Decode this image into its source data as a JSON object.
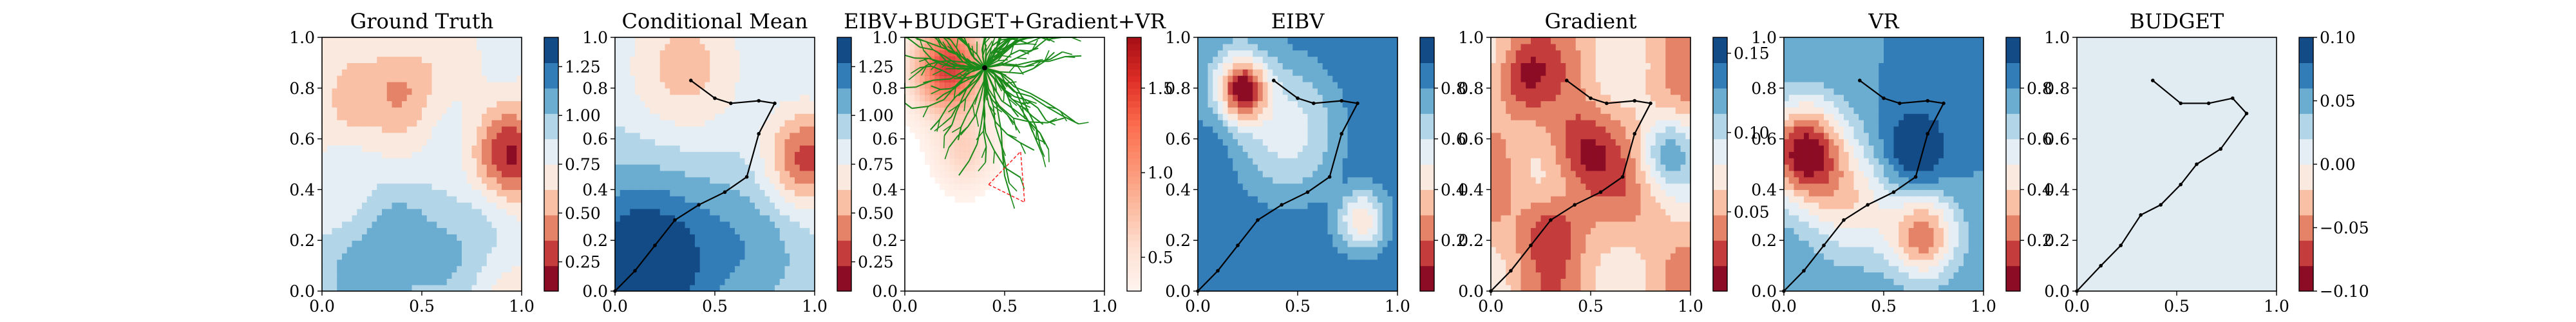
{
  "chart_data": [
    {
      "type": "heatmap",
      "title": "Ground Truth",
      "xlabel": "",
      "ylabel": "",
      "xlim": [
        0,
        1
      ],
      "ylim": [
        0,
        1
      ],
      "x_ticks": [
        "0.0",
        "0.5",
        "1.0"
      ],
      "y_ticks": [
        "0.0",
        "0.2",
        "0.4",
        "0.6",
        "0.8",
        "1.0"
      ],
      "colormap": "RdBu",
      "colorbar_ticks": [
        "0.25",
        "0.50",
        "0.75",
        "1.00",
        "1.25"
      ],
      "colorbar_range": [
        0.1,
        1.4
      ],
      "path": []
    },
    {
      "type": "heatmap",
      "title": "Conditional Mean",
      "xlabel": "",
      "ylabel": "",
      "xlim": [
        0,
        1
      ],
      "ylim": [
        0,
        1
      ],
      "x_ticks": [
        "0.0",
        "0.5",
        "1.0"
      ],
      "y_ticks": [
        "0.0",
        "0.2",
        "0.4",
        "0.6",
        "0.8",
        "1.0"
      ],
      "colormap": "RdBu",
      "colorbar_ticks": [
        "0.25",
        "0.50",
        "0.75",
        "1.00",
        "1.25"
      ],
      "colorbar_range": [
        0.1,
        1.4
      ],
      "path": [
        [
          0.0,
          0.0
        ],
        [
          0.1,
          0.08
        ],
        [
          0.2,
          0.18
        ],
        [
          0.3,
          0.28
        ],
        [
          0.42,
          0.34
        ],
        [
          0.55,
          0.39
        ],
        [
          0.66,
          0.45
        ],
        [
          0.72,
          0.62
        ],
        [
          0.8,
          0.74
        ],
        [
          0.72,
          0.75
        ],
        [
          0.58,
          0.74
        ],
        [
          0.5,
          0.76
        ],
        [
          0.38,
          0.83
        ]
      ]
    },
    {
      "type": "scatter",
      "title": "EIBV+BUDGET+Gradient+VR",
      "xlabel": "",
      "ylabel": "",
      "xlim": [
        0,
        1
      ],
      "ylim": [
        0,
        1
      ],
      "x_ticks": [
        "0.0",
        "0.5",
        "1.0"
      ],
      "y_ticks": [
        "0.0",
        "0.2",
        "0.4",
        "0.6",
        "0.8",
        "1.0"
      ],
      "colormap": "Reds",
      "colorbar_ticks": [
        "0.5",
        "1.0",
        "1.5"
      ],
      "colorbar_range": [
        0.3,
        1.8
      ],
      "tree_root": [
        0.4,
        0.88
      ],
      "path": []
    },
    {
      "type": "heatmap",
      "title": "EIBV",
      "xlabel": "",
      "ylabel": "",
      "xlim": [
        0,
        1
      ],
      "ylim": [
        0,
        1
      ],
      "x_ticks": [
        "0.0",
        "0.5",
        "1.0"
      ],
      "y_ticks": [
        "0.0",
        "0.2",
        "0.4",
        "0.6",
        "0.8",
        "1.0"
      ],
      "colormap": "RdBu",
      "colorbar_ticks": [
        "0.2",
        "0.4",
        "0.6",
        "0.8"
      ],
      "colorbar_range": [
        0.0,
        1.0
      ],
      "path": [
        [
          0.0,
          0.0
        ],
        [
          0.1,
          0.08
        ],
        [
          0.2,
          0.18
        ],
        [
          0.3,
          0.28
        ],
        [
          0.42,
          0.34
        ],
        [
          0.55,
          0.39
        ],
        [
          0.66,
          0.45
        ],
        [
          0.72,
          0.62
        ],
        [
          0.8,
          0.74
        ],
        [
          0.72,
          0.75
        ],
        [
          0.58,
          0.74
        ],
        [
          0.5,
          0.76
        ],
        [
          0.38,
          0.83
        ]
      ]
    },
    {
      "type": "heatmap",
      "title": "Gradient",
      "xlabel": "",
      "ylabel": "",
      "xlim": [
        0,
        1
      ],
      "ylim": [
        0,
        1
      ],
      "x_ticks": [
        "0.0",
        "0.5",
        "1.0"
      ],
      "y_ticks": [
        "0.0",
        "0.2",
        "0.4",
        "0.6",
        "0.8",
        "1.0"
      ],
      "colormap": "RdBu",
      "colorbar_ticks": [
        "0.05",
        "0.10",
        "0.15"
      ],
      "colorbar_range": [
        0.0,
        0.16
      ],
      "path": [
        [
          0.0,
          0.0
        ],
        [
          0.1,
          0.08
        ],
        [
          0.2,
          0.18
        ],
        [
          0.3,
          0.28
        ],
        [
          0.42,
          0.34
        ],
        [
          0.55,
          0.39
        ],
        [
          0.66,
          0.45
        ],
        [
          0.72,
          0.62
        ],
        [
          0.8,
          0.74
        ],
        [
          0.72,
          0.75
        ],
        [
          0.58,
          0.74
        ],
        [
          0.5,
          0.76
        ],
        [
          0.38,
          0.83
        ]
      ]
    },
    {
      "type": "heatmap",
      "title": "VR",
      "xlabel": "",
      "ylabel": "",
      "xlim": [
        0,
        1
      ],
      "ylim": [
        0,
        1
      ],
      "x_ticks": [
        "0.0",
        "0.5",
        "1.0"
      ],
      "y_ticks": [
        "0.0",
        "0.2",
        "0.4",
        "0.6",
        "0.8",
        "1.0"
      ],
      "colormap": "RdBu",
      "colorbar_ticks": [
        "0.2",
        "0.4",
        "0.6",
        "0.8"
      ],
      "colorbar_range": [
        0.0,
        1.0
      ],
      "path": [
        [
          0.0,
          0.0
        ],
        [
          0.1,
          0.08
        ],
        [
          0.2,
          0.18
        ],
        [
          0.3,
          0.28
        ],
        [
          0.42,
          0.34
        ],
        [
          0.55,
          0.39
        ],
        [
          0.66,
          0.45
        ],
        [
          0.72,
          0.62
        ],
        [
          0.8,
          0.74
        ],
        [
          0.72,
          0.75
        ],
        [
          0.58,
          0.74
        ],
        [
          0.5,
          0.76
        ],
        [
          0.38,
          0.83
        ]
      ]
    },
    {
      "type": "heatmap",
      "title": "BUDGET",
      "xlabel": "",
      "ylabel": "",
      "xlim": [
        0,
        1
      ],
      "ylim": [
        0,
        1
      ],
      "x_ticks": [
        "0.0",
        "0.5",
        "1.0"
      ],
      "y_ticks": [
        "0.0",
        "0.2",
        "0.4",
        "0.6",
        "0.8",
        "1.0"
      ],
      "colormap": "RdBu",
      "colorbar_ticks": [
        "−0.10",
        "−0.05",
        "0.00",
        "0.05",
        "0.10"
      ],
      "colorbar_range": [
        -0.1,
        0.1
      ],
      "path": [
        [
          0.0,
          0.0
        ],
        [
          0.12,
          0.1
        ],
        [
          0.22,
          0.18
        ],
        [
          0.32,
          0.3
        ],
        [
          0.42,
          0.34
        ],
        [
          0.52,
          0.42
        ],
        [
          0.6,
          0.5
        ],
        [
          0.72,
          0.56
        ],
        [
          0.85,
          0.7
        ],
        [
          0.78,
          0.76
        ],
        [
          0.66,
          0.74
        ],
        [
          0.52,
          0.74
        ],
        [
          0.38,
          0.83
        ]
      ]
    }
  ]
}
